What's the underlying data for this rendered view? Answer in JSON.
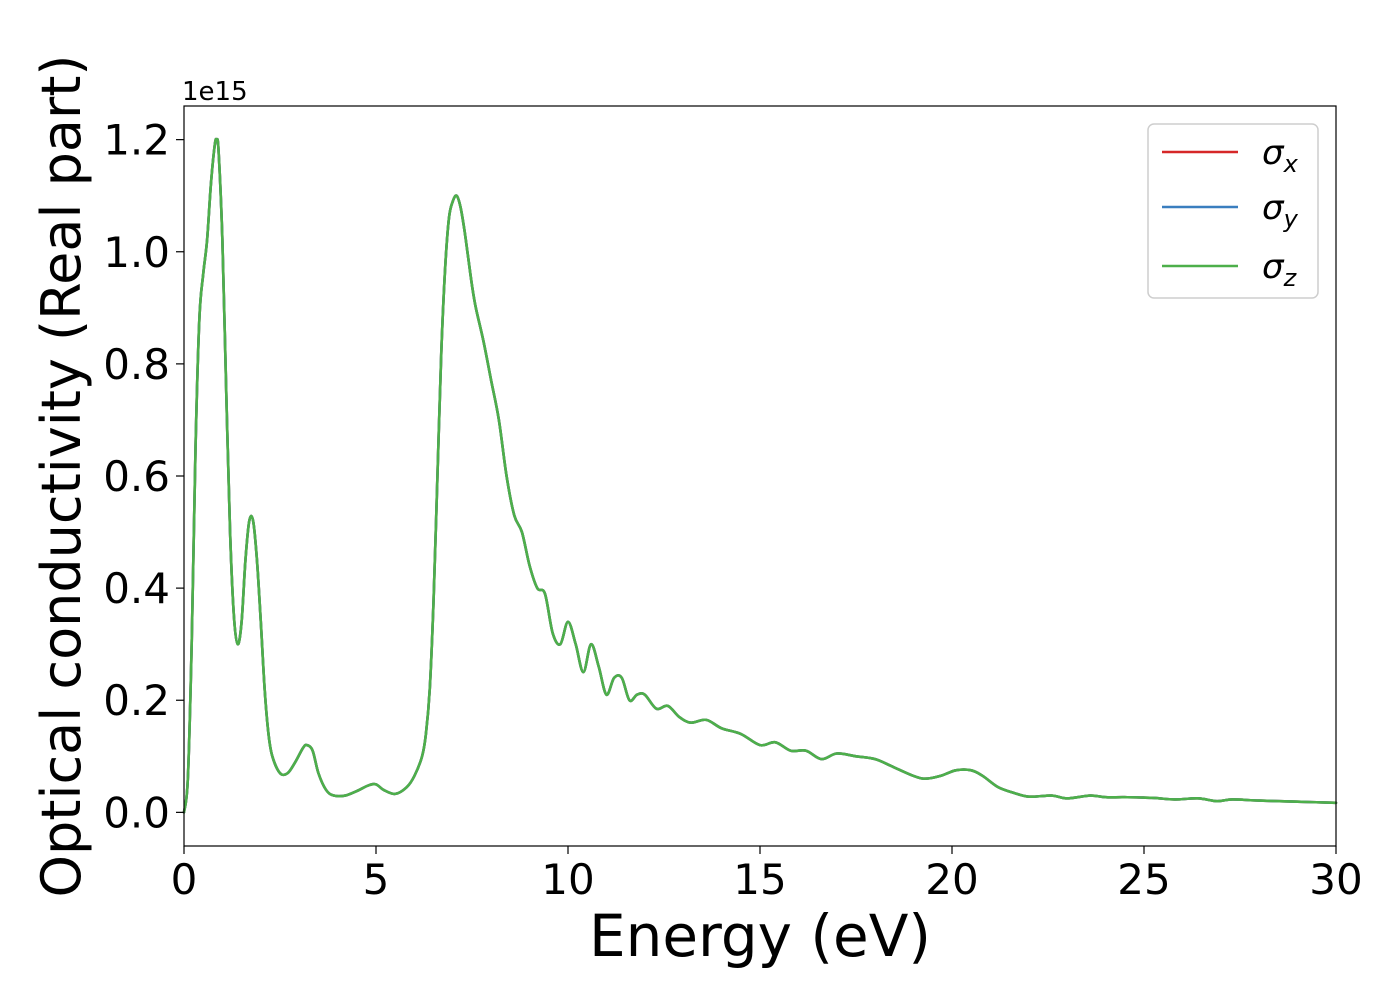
{
  "chart_data": {
    "type": "line",
    "title": "",
    "xlabel": "Energy (eV)",
    "ylabel": "Optical conductivity (Real part)",
    "offset_text": "1e15",
    "xlim": [
      0,
      30
    ],
    "ylim": [
      -0.06,
      1.26
    ],
    "x_ticks": [
      0,
      5,
      10,
      15,
      20,
      25,
      30
    ],
    "x_tick_labels": [
      "0",
      "5",
      "10",
      "15",
      "20",
      "25",
      "30"
    ],
    "y_ticks": [
      0.0,
      0.2,
      0.4,
      0.6,
      0.8,
      1.0,
      1.2
    ],
    "y_tick_labels": [
      "0.0",
      "0.2",
      "0.4",
      "0.6",
      "0.8",
      "1.0",
      "1.2"
    ],
    "grid": false,
    "legend_position": "top-right",
    "series": [
      {
        "name": "σx",
        "legend_base": "σ",
        "legend_sub": "x",
        "color": "#d62728",
        "x": [
          0,
          0.1,
          0.2,
          0.3,
          0.4,
          0.5,
          0.6,
          0.7,
          0.8,
          0.85,
          0.9,
          1.0,
          1.1,
          1.2,
          1.3,
          1.4,
          1.5,
          1.6,
          1.7,
          1.8,
          1.9,
          2.0,
          2.1,
          2.2,
          2.3,
          2.5,
          2.7,
          2.9,
          3.1,
          3.2,
          3.35,
          3.5,
          3.7,
          3.9,
          4.2,
          4.5,
          4.8,
          5.0,
          5.2,
          5.5,
          5.8,
          6.0,
          6.2,
          6.3,
          6.4,
          6.5,
          6.6,
          6.7,
          6.8,
          6.9,
          7.0,
          7.1,
          7.2,
          7.3,
          7.4,
          7.5,
          7.6,
          7.8,
          8.0,
          8.2,
          8.4,
          8.6,
          8.8,
          9.0,
          9.2,
          9.4,
          9.6,
          9.8,
          10.0,
          10.2,
          10.4,
          10.6,
          10.8,
          11.0,
          11.2,
          11.4,
          11.6,
          11.8,
          12.0,
          12.3,
          12.6,
          12.9,
          13.2,
          13.6,
          14.0,
          14.5,
          15.0,
          15.4,
          15.8,
          16.2,
          16.6,
          17.0,
          17.5,
          18.0,
          18.5,
          19.0,
          19.3,
          19.7,
          20.1,
          20.5,
          20.8,
          21.2,
          21.6,
          22.0,
          22.6,
          23.0,
          23.6,
          24.0,
          24.5,
          25.2,
          25.8,
          26.4,
          26.9,
          27.3,
          28.0,
          29.0,
          30.0
        ],
        "y": [
          0.0,
          0.06,
          0.3,
          0.65,
          0.88,
          0.96,
          1.02,
          1.12,
          1.19,
          1.2,
          1.18,
          1.02,
          0.75,
          0.5,
          0.35,
          0.3,
          0.34,
          0.45,
          0.52,
          0.52,
          0.45,
          0.34,
          0.22,
          0.14,
          0.1,
          0.07,
          0.07,
          0.09,
          0.115,
          0.12,
          0.11,
          0.07,
          0.04,
          0.03,
          0.03,
          0.038,
          0.048,
          0.05,
          0.04,
          0.033,
          0.045,
          0.065,
          0.1,
          0.14,
          0.22,
          0.38,
          0.6,
          0.82,
          0.97,
          1.06,
          1.09,
          1.1,
          1.08,
          1.04,
          0.99,
          0.94,
          0.9,
          0.84,
          0.77,
          0.7,
          0.6,
          0.53,
          0.5,
          0.44,
          0.4,
          0.39,
          0.32,
          0.3,
          0.34,
          0.3,
          0.25,
          0.3,
          0.26,
          0.21,
          0.24,
          0.24,
          0.2,
          0.21,
          0.21,
          0.185,
          0.19,
          0.17,
          0.16,
          0.165,
          0.15,
          0.14,
          0.12,
          0.125,
          0.11,
          0.11,
          0.095,
          0.105,
          0.1,
          0.095,
          0.08,
          0.065,
          0.06,
          0.065,
          0.075,
          0.075,
          0.065,
          0.045,
          0.035,
          0.028,
          0.03,
          0.025,
          0.03,
          0.027,
          0.027,
          0.026,
          0.023,
          0.025,
          0.02,
          0.023,
          0.021,
          0.019,
          0.017
        ]
      },
      {
        "name": "σy",
        "legend_base": "σ",
        "legend_sub": "y",
        "color": "#3a7ebf",
        "x": [
          0,
          0.1,
          0.2,
          0.3,
          0.4,
          0.5,
          0.6,
          0.7,
          0.8,
          0.85,
          0.9,
          1.0,
          1.1,
          1.2,
          1.3,
          1.4,
          1.5,
          1.6,
          1.7,
          1.8,
          1.9,
          2.0,
          2.1,
          2.2,
          2.3,
          2.5,
          2.7,
          2.9,
          3.1,
          3.2,
          3.35,
          3.5,
          3.7,
          3.9,
          4.2,
          4.5,
          4.8,
          5.0,
          5.2,
          5.5,
          5.8,
          6.0,
          6.2,
          6.3,
          6.4,
          6.5,
          6.6,
          6.7,
          6.8,
          6.9,
          7.0,
          7.1,
          7.2,
          7.3,
          7.4,
          7.5,
          7.6,
          7.8,
          8.0,
          8.2,
          8.4,
          8.6,
          8.8,
          9.0,
          9.2,
          9.4,
          9.6,
          9.8,
          10.0,
          10.2,
          10.4,
          10.6,
          10.8,
          11.0,
          11.2,
          11.4,
          11.6,
          11.8,
          12.0,
          12.3,
          12.6,
          12.9,
          13.2,
          13.6,
          14.0,
          14.5,
          15.0,
          15.4,
          15.8,
          16.2,
          16.6,
          17.0,
          17.5,
          18.0,
          18.5,
          19.0,
          19.3,
          19.7,
          20.1,
          20.5,
          20.8,
          21.2,
          21.6,
          22.0,
          22.6,
          23.0,
          23.6,
          24.0,
          24.5,
          25.2,
          25.8,
          26.4,
          26.9,
          27.3,
          28.0,
          29.0,
          30.0
        ],
        "y": [
          0.0,
          0.06,
          0.3,
          0.65,
          0.88,
          0.96,
          1.02,
          1.12,
          1.19,
          1.2,
          1.18,
          1.02,
          0.75,
          0.5,
          0.35,
          0.3,
          0.34,
          0.45,
          0.52,
          0.52,
          0.45,
          0.34,
          0.22,
          0.14,
          0.1,
          0.07,
          0.07,
          0.09,
          0.115,
          0.12,
          0.11,
          0.07,
          0.04,
          0.03,
          0.03,
          0.038,
          0.048,
          0.05,
          0.04,
          0.033,
          0.045,
          0.065,
          0.1,
          0.14,
          0.22,
          0.38,
          0.6,
          0.82,
          0.97,
          1.06,
          1.09,
          1.1,
          1.08,
          1.04,
          0.99,
          0.94,
          0.9,
          0.84,
          0.77,
          0.7,
          0.6,
          0.53,
          0.5,
          0.44,
          0.4,
          0.39,
          0.32,
          0.3,
          0.34,
          0.3,
          0.25,
          0.3,
          0.26,
          0.21,
          0.24,
          0.24,
          0.2,
          0.21,
          0.21,
          0.185,
          0.19,
          0.17,
          0.16,
          0.165,
          0.15,
          0.14,
          0.12,
          0.125,
          0.11,
          0.11,
          0.095,
          0.105,
          0.1,
          0.095,
          0.08,
          0.065,
          0.06,
          0.065,
          0.075,
          0.075,
          0.065,
          0.045,
          0.035,
          0.028,
          0.03,
          0.025,
          0.03,
          0.027,
          0.027,
          0.026,
          0.023,
          0.025,
          0.02,
          0.023,
          0.021,
          0.019,
          0.017
        ]
      },
      {
        "name": "σz",
        "legend_base": "σ",
        "legend_sub": "z",
        "color": "#4daf4a",
        "x": [
          0,
          0.1,
          0.2,
          0.3,
          0.4,
          0.5,
          0.6,
          0.7,
          0.8,
          0.85,
          0.9,
          1.0,
          1.1,
          1.2,
          1.3,
          1.4,
          1.5,
          1.6,
          1.7,
          1.8,
          1.9,
          2.0,
          2.1,
          2.2,
          2.3,
          2.5,
          2.7,
          2.9,
          3.1,
          3.2,
          3.35,
          3.5,
          3.7,
          3.9,
          4.2,
          4.5,
          4.8,
          5.0,
          5.2,
          5.5,
          5.8,
          6.0,
          6.2,
          6.3,
          6.4,
          6.5,
          6.6,
          6.7,
          6.8,
          6.9,
          7.0,
          7.1,
          7.2,
          7.3,
          7.4,
          7.5,
          7.6,
          7.8,
          8.0,
          8.2,
          8.4,
          8.6,
          8.8,
          9.0,
          9.2,
          9.4,
          9.6,
          9.8,
          10.0,
          10.2,
          10.4,
          10.6,
          10.8,
          11.0,
          11.2,
          11.4,
          11.6,
          11.8,
          12.0,
          12.3,
          12.6,
          12.9,
          13.2,
          13.6,
          14.0,
          14.5,
          15.0,
          15.4,
          15.8,
          16.2,
          16.6,
          17.0,
          17.5,
          18.0,
          18.5,
          19.0,
          19.3,
          19.7,
          20.1,
          20.5,
          20.8,
          21.2,
          21.6,
          22.0,
          22.6,
          23.0,
          23.6,
          24.0,
          24.5,
          25.2,
          25.8,
          26.4,
          26.9,
          27.3,
          28.0,
          29.0,
          30.0
        ],
        "y": [
          0.0,
          0.06,
          0.3,
          0.65,
          0.88,
          0.96,
          1.02,
          1.12,
          1.19,
          1.2,
          1.18,
          1.02,
          0.75,
          0.5,
          0.35,
          0.3,
          0.34,
          0.45,
          0.52,
          0.52,
          0.45,
          0.34,
          0.22,
          0.14,
          0.1,
          0.07,
          0.07,
          0.09,
          0.115,
          0.12,
          0.11,
          0.07,
          0.04,
          0.03,
          0.03,
          0.038,
          0.048,
          0.05,
          0.04,
          0.033,
          0.045,
          0.065,
          0.1,
          0.14,
          0.22,
          0.38,
          0.6,
          0.82,
          0.97,
          1.06,
          1.09,
          1.1,
          1.08,
          1.04,
          0.99,
          0.94,
          0.9,
          0.84,
          0.77,
          0.7,
          0.6,
          0.53,
          0.5,
          0.44,
          0.4,
          0.39,
          0.32,
          0.3,
          0.34,
          0.3,
          0.25,
          0.3,
          0.26,
          0.21,
          0.24,
          0.24,
          0.2,
          0.21,
          0.21,
          0.185,
          0.19,
          0.17,
          0.16,
          0.165,
          0.15,
          0.14,
          0.12,
          0.125,
          0.11,
          0.11,
          0.095,
          0.105,
          0.1,
          0.095,
          0.08,
          0.065,
          0.06,
          0.065,
          0.075,
          0.075,
          0.065,
          0.045,
          0.035,
          0.028,
          0.03,
          0.025,
          0.03,
          0.027,
          0.027,
          0.026,
          0.023,
          0.025,
          0.02,
          0.023,
          0.021,
          0.019,
          0.017
        ]
      }
    ]
  }
}
